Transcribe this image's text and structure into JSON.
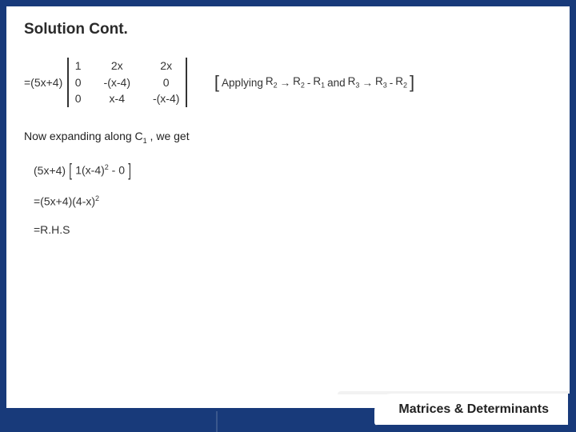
{
  "title": "Solution Cont.",
  "matrix": {
    "prefix": "=(5x+4)",
    "cells": [
      "1",
      "2x",
      "2x",
      "0",
      "-(x-4)",
      "0",
      "0",
      "x-4",
      "-(x-4)"
    ],
    "col_gap": 28
  },
  "annotation": {
    "open": "[",
    "close": "]",
    "label_applying": "Applying",
    "r2": "R",
    "r2s": "2",
    "arrow": "→",
    "r2b": "R",
    "r2bs": "2",
    "minus1": " -",
    "r1": "R",
    "r1s": "1",
    "and": " and ",
    "r3": "R",
    "r3s": "3",
    "arrow2": "→",
    "r3b": "R",
    "r3bs": "3",
    "minus2": " -",
    "r2c": "R",
    "r2cs": "2"
  },
  "body_text_pre": "Now expanding along C",
  "body_text_sub": "1",
  "body_text_post": " , we get",
  "expr1_a": "(5x+4)",
  "expr1_b": "1(x-4)",
  "expr1_sup": "2",
  "expr1_c": " - 0",
  "expr2_a": "=(5x+4)(4-x)",
  "expr2_sup": "2",
  "expr3": "=R.H.S",
  "topic": "Matrices & Determinants",
  "colors": {
    "frame": "#183a7a",
    "bg": "#ffffff",
    "text": "#2a2a2a"
  }
}
